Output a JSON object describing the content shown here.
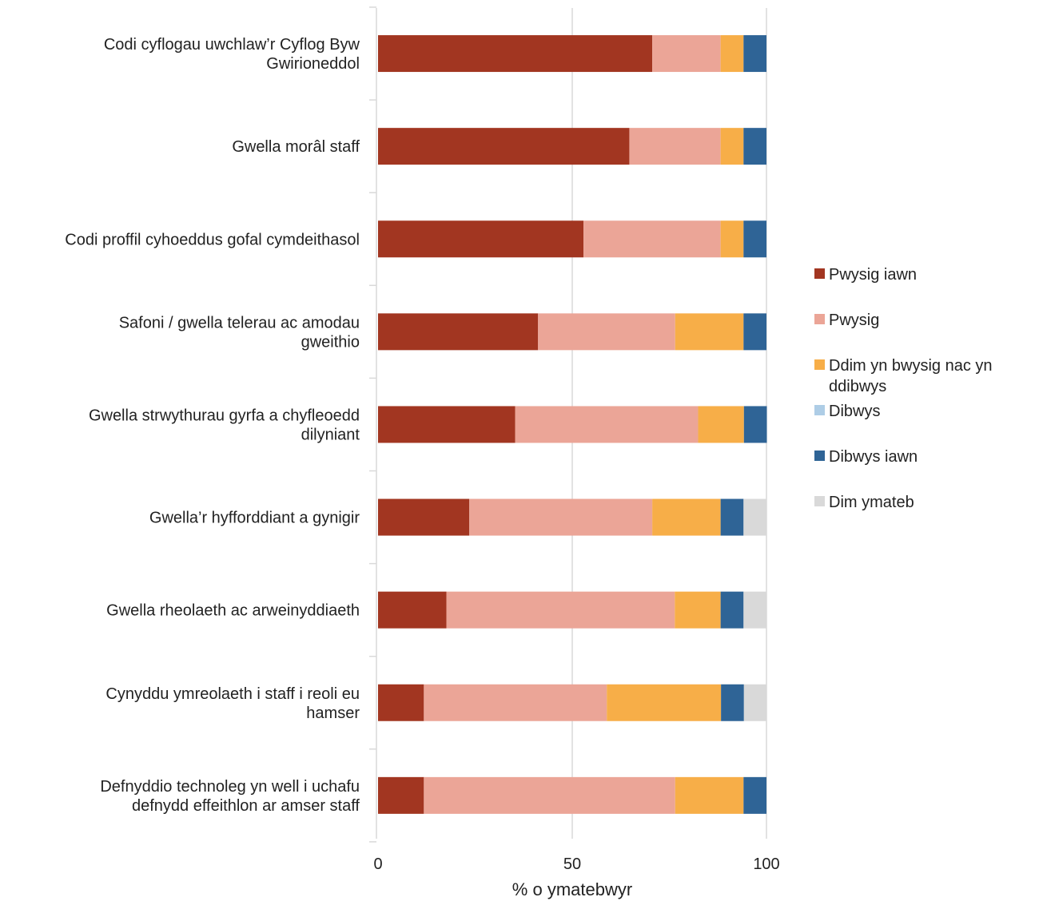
{
  "chart_data": {
    "type": "bar",
    "orientation": "horizontal",
    "stacked": true,
    "title": "",
    "xlabel": "% o ymatebwyr",
    "ylabel": "",
    "xlim": [
      0,
      100
    ],
    "xticks": [
      0,
      50,
      100
    ],
    "grid": true,
    "legend_position": "right",
    "categories": [
      [
        "Codi cyflogau uwchlaw’r Cyflog Byw",
        "Gwirioneddol"
      ],
      [
        "Gwella morâl staff"
      ],
      [
        "Codi proffil cyhoeddus gofal cymdeithasol"
      ],
      [
        "Safoni / gwella telerau ac amodau",
        "gweithio"
      ],
      [
        "Gwella strwythurau gyrfa a chyfleoedd",
        "dilyniant"
      ],
      [
        "Gwella’r hyfforddiant a gynigir"
      ],
      [
        "Gwella rheolaeth ac arweinyddiaeth"
      ],
      [
        "Cynyddu ymreolaeth i staff i reoli eu",
        "hamser"
      ],
      [
        "Defnyddio technoleg yn well i uchafu",
        "defnydd effeithlon ar amser staff"
      ]
    ],
    "series": [
      {
        "name": "Pwysig iawn",
        "color": "#a23621",
        "values": [
          70.6,
          64.7,
          52.9,
          41.2,
          35.3,
          23.5,
          17.6,
          11.8,
          11.8
        ]
      },
      {
        "name": "Pwysig",
        "color": "#eba597",
        "values": [
          17.6,
          23.5,
          35.3,
          35.3,
          47.1,
          47.1,
          58.8,
          47.1,
          64.7
        ]
      },
      {
        "name": [
          "Ddim yn bwysig nac yn",
          "ddibwys"
        ],
        "color": "#f7ae48",
        "values": [
          5.9,
          5.9,
          5.9,
          17.6,
          11.8,
          17.6,
          11.8,
          29.4,
          17.6
        ]
      },
      {
        "name": "Dibwys",
        "color": "#aecde6",
        "values": [
          0,
          0,
          0,
          0,
          0,
          0,
          0,
          0,
          0
        ]
      },
      {
        "name": "Dibwys iawn",
        "color": "#2f6496",
        "values": [
          5.9,
          5.9,
          5.9,
          5.9,
          5.9,
          5.9,
          5.9,
          5.9,
          5.9
        ]
      },
      {
        "name": "Dim ymateb",
        "color": "#d9d9d9",
        "values": [
          0,
          0,
          0,
          0,
          0,
          5.9,
          5.9,
          5.9,
          0
        ]
      }
    ]
  }
}
